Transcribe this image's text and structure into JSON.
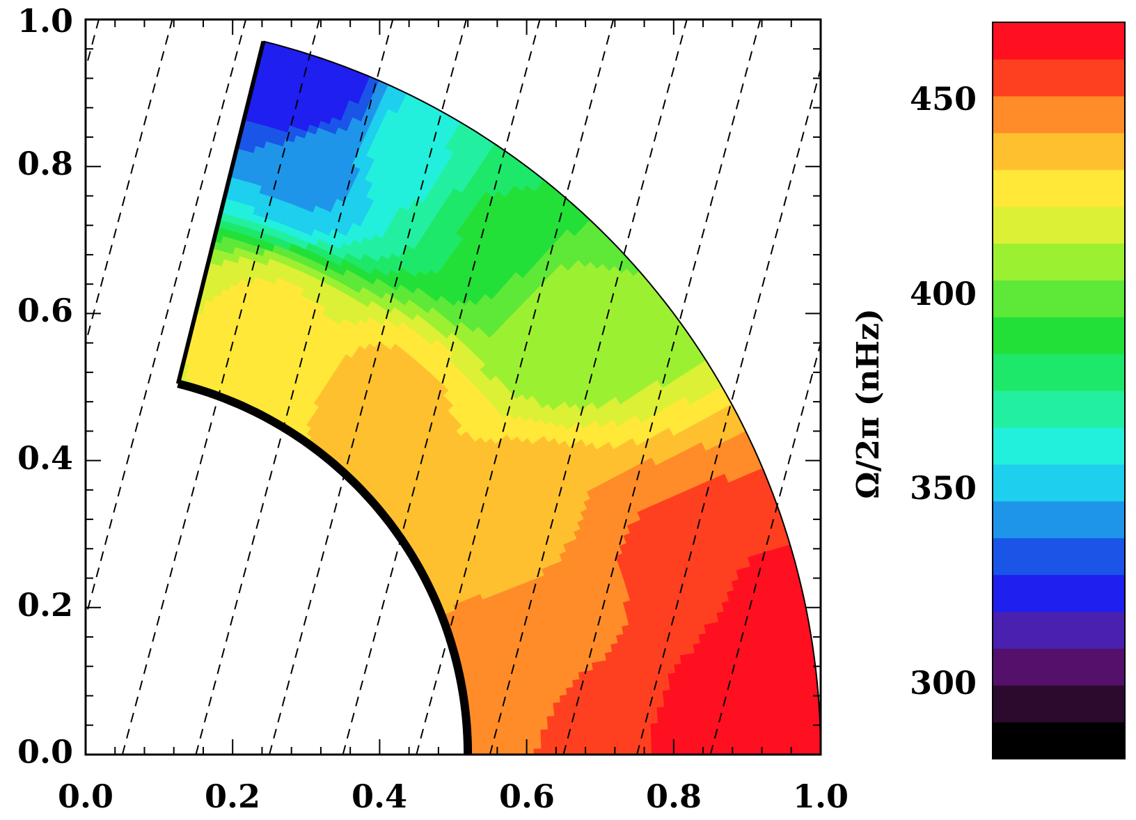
{
  "chart_data": [
    {
      "type": "heatmap",
      "subtype": "meridional-contour",
      "title": "",
      "xlabel": "",
      "ylabel": "",
      "xlim": [
        0.0,
        1.0
      ],
      "ylim": [
        0.0,
        1.0
      ],
      "x_ticks": [
        "0.0",
        "0.2",
        "0.4",
        "0.6",
        "0.8",
        "1.0"
      ],
      "y_ticks": [
        "0.0",
        "0.2",
        "0.4",
        "0.6",
        "0.8",
        "1.0"
      ],
      "domain": {
        "inner_radius": 0.52,
        "outer_radius": 1.0,
        "min_latitude_deg": 0,
        "max_latitude_deg": 76
      },
      "field": {
        "name": "Ω/2π (nHz)",
        "min": 280,
        "max": 470,
        "samples": [
          {
            "x": 0.3,
            "y": 0.9,
            "value": 320
          },
          {
            "x": 0.32,
            "y": 0.8,
            "value": 345
          },
          {
            "x": 0.45,
            "y": 0.8,
            "value": 365
          },
          {
            "x": 0.55,
            "y": 0.72,
            "value": 385
          },
          {
            "x": 0.65,
            "y": 0.6,
            "value": 405
          },
          {
            "x": 0.25,
            "y": 0.58,
            "value": 425
          },
          {
            "x": 0.4,
            "y": 0.48,
            "value": 435
          },
          {
            "x": 0.6,
            "y": 0.3,
            "value": 440
          },
          {
            "x": 0.7,
            "y": 0.2,
            "value": 450
          },
          {
            "x": 0.8,
            "y": 0.2,
            "value": 460
          },
          {
            "x": 0.92,
            "y": 0.1,
            "value": 470
          }
        ]
      },
      "overlay": {
        "dashed_lines": "parallel lines tilted from the rotation axis"
      }
    },
    {
      "type": "colorbar",
      "label": "Ω/2π (nHz)",
      "ticks": [
        300,
        350,
        400,
        450
      ],
      "tick_labels": [
        "300",
        "350",
        "400",
        "450"
      ],
      "range": [
        280,
        470
      ],
      "levels": 19,
      "colors": [
        "#000000",
        "#2b0a2e",
        "#54106b",
        "#4a20b0",
        "#1f1ff0",
        "#1a55e8",
        "#1f95ea",
        "#1ecfee",
        "#22f0dc",
        "#22f0a0",
        "#1ee86a",
        "#22e038",
        "#5ee838",
        "#9cf032",
        "#dcf036",
        "#ffe838",
        "#ffc030",
        "#ff8c28",
        "#ff4020",
        "#ff1020"
      ]
    }
  ]
}
